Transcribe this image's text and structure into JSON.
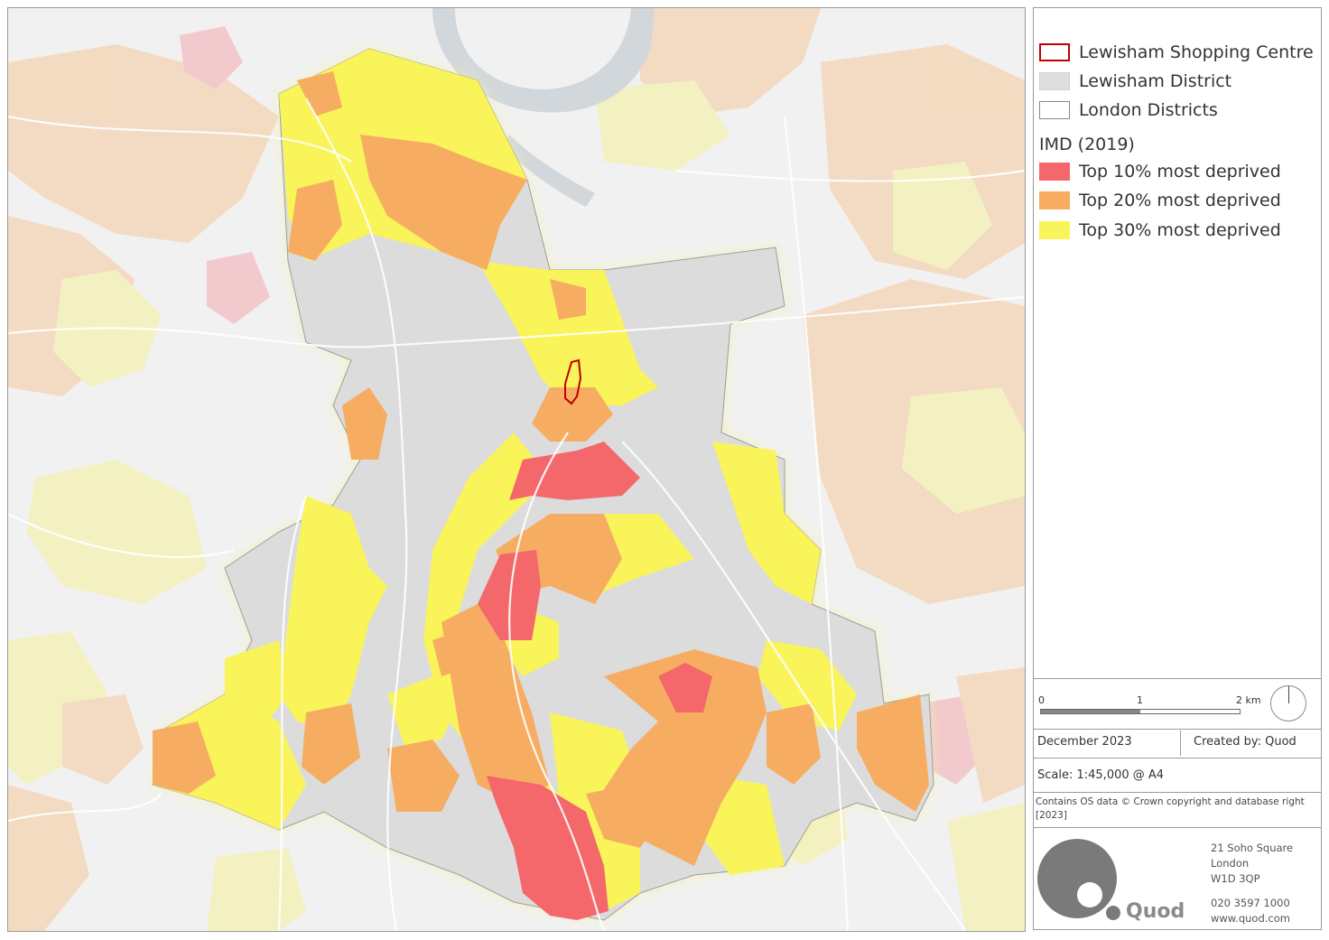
{
  "legend": {
    "items": [
      {
        "label": "Lewisham Shopping Centre",
        "fill": "#ffffff",
        "stroke": "#c00000"
      },
      {
        "label": "Lewisham District",
        "fill": "#dedede",
        "stroke": "#dedede"
      },
      {
        "label": "London Districts",
        "fill": "#ffffff",
        "stroke": "#8a8a8a"
      }
    ],
    "imd_heading": "IMD (2019)",
    "imd_items": [
      {
        "label": "Top 10% most deprived",
        "color": "#f4676b"
      },
      {
        "label": "Top 20% most deprived",
        "color": "#f6ad62"
      },
      {
        "label": "Top 30% most deprived",
        "color": "#f8f45a"
      }
    ]
  },
  "scalebar": {
    "label_0": "0",
    "label_1": "1",
    "label_2": "2 km"
  },
  "footer": {
    "date": "December 2023",
    "created_by": "Created by: Quod",
    "scale": "Scale: 1:45,000 @ A4",
    "copyright": "Contains OS data © Crown copyright and database right [2023]"
  },
  "company": {
    "name": "Quod",
    "address_line1": "21 Soho Square",
    "address_line2": "London",
    "address_line3": "W1D 3QP",
    "phone": "020 3597 1000",
    "website": "www.quod.com"
  },
  "colors": {
    "decile_10": "#f4676b",
    "decile_20": "#f6ad62",
    "decile_30": "#f8f45a",
    "district": "#dcdcdc",
    "shopping_centre_outline": "#c00000",
    "river": "#d2d7dc",
    "logo": "#7a7a7a"
  }
}
